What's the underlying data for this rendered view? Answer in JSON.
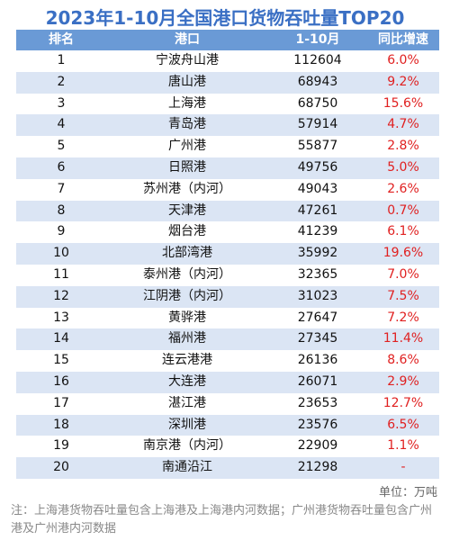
{
  "title": "2023年1-10月全国港口货物吞吐量TOP20",
  "table": {
    "header": [
      "排名",
      "港口",
      "1-10月",
      "同比增速"
    ],
    "rows": [
      [
        "1",
        "宁波舟山港",
        "112604",
        "6.0%"
      ],
      [
        "2",
        "唐山港",
        "68943",
        "9.2%"
      ],
      [
        "3",
        "上海港",
        "68750",
        "15.6%"
      ],
      [
        "4",
        "青岛港",
        "57914",
        "4.7%"
      ],
      [
        "5",
        "广州港",
        "55877",
        "2.8%"
      ],
      [
        "6",
        "日照港",
        "49756",
        "5.0%"
      ],
      [
        "7",
        "苏州港（内河）",
        "49043",
        "2.6%"
      ],
      [
        "8",
        "天津港",
        "47261",
        "0.7%"
      ],
      [
        "9",
        "烟台港",
        "41239",
        "6.1%"
      ],
      [
        "10",
        "北部湾港",
        "35992",
        "19.6%"
      ],
      [
        "11",
        "泰州港（内河）",
        "32365",
        "7.0%"
      ],
      [
        "12",
        "江阴港（内河）",
        "31023",
        "7.5%"
      ],
      [
        "13",
        "黄骅港",
        "27647",
        "7.2%"
      ],
      [
        "14",
        "福州港",
        "27345",
        "11.4%"
      ],
      [
        "15",
        "连云港港",
        "26136",
        "8.6%"
      ],
      [
        "16",
        "大连港",
        "26071",
        "2.9%"
      ],
      [
        "17",
        "湛江港",
        "23653",
        "12.7%"
      ],
      [
        "18",
        "深圳港",
        "23576",
        "6.5%"
      ],
      [
        "19",
        "南京港（内河）",
        "22909",
        "1.1%"
      ],
      [
        "20",
        "南通沿江",
        "21298",
        "-"
      ]
    ]
  },
  "unit": "单位：万吨",
  "note": "注：上海港货物吞吐量包含上海港及上海港内河数据；广州港货物吞吐量包含广州港及广州港内河数据"
}
